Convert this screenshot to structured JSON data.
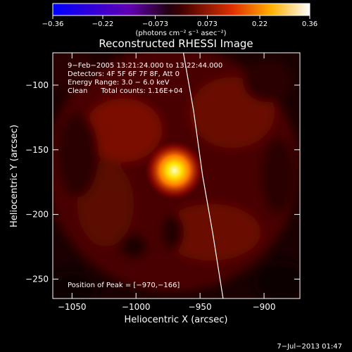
{
  "chart_data": {
    "type": "heatmap",
    "title": "Reconstructed RHESSI Image",
    "xlabel": "Heliocentric X (arcsec)",
    "ylabel": "Heliocentric Y (arcsec)",
    "xlim": [
      -1065,
      -872
    ],
    "ylim": [
      -265,
      -75
    ],
    "x_ticks": [
      -1050,
      -1000,
      -950,
      -900
    ],
    "x_tick_labels": [
      "−1050",
      "−1000",
      "−950",
      "−900"
    ],
    "y_ticks": [
      -100,
      -150,
      -200,
      -250
    ],
    "y_tick_labels": [
      "−100",
      "−150",
      "−200",
      "−250"
    ],
    "colorbar": {
      "ticks": [
        -0.36,
        -0.22,
        -0.073,
        0.073,
        0.22,
        0.36
      ],
      "tick_labels": [
        "−0.36",
        "−0.22",
        "−0.073",
        "0.073",
        "0.22",
        "0.36"
      ],
      "units": "(photons cm⁻² s⁻¹ asec⁻²)",
      "colormap": [
        "#0000ff",
        "#5000c0",
        "#400000",
        "#ff4000",
        "#ffff00",
        "#ffffff"
      ]
    },
    "annotations": [
      "9−Feb−2005 13:21:24.000 to 13:22:44.000",
      "Detectors: 4F 5F 6F 7F 8F, Att 0",
      "Energy Range: 3.0 − 6.0 keV",
      "Clean      Total counts: 1.16E+04"
    ],
    "peak": {
      "label": "Position of Peak = [−970,−166]",
      "x": -970,
      "y": -166
    },
    "limb_line": [
      {
        "x": -963,
        "y": -75
      },
      {
        "x": -955,
        "y": -120
      },
      {
        "x": -948,
        "y": -170
      },
      {
        "x": -940,
        "y": -215
      },
      {
        "x": -932,
        "y": -265
      }
    ]
  },
  "footer": {
    "timestamp": "7−Jul−2013 01:47"
  }
}
